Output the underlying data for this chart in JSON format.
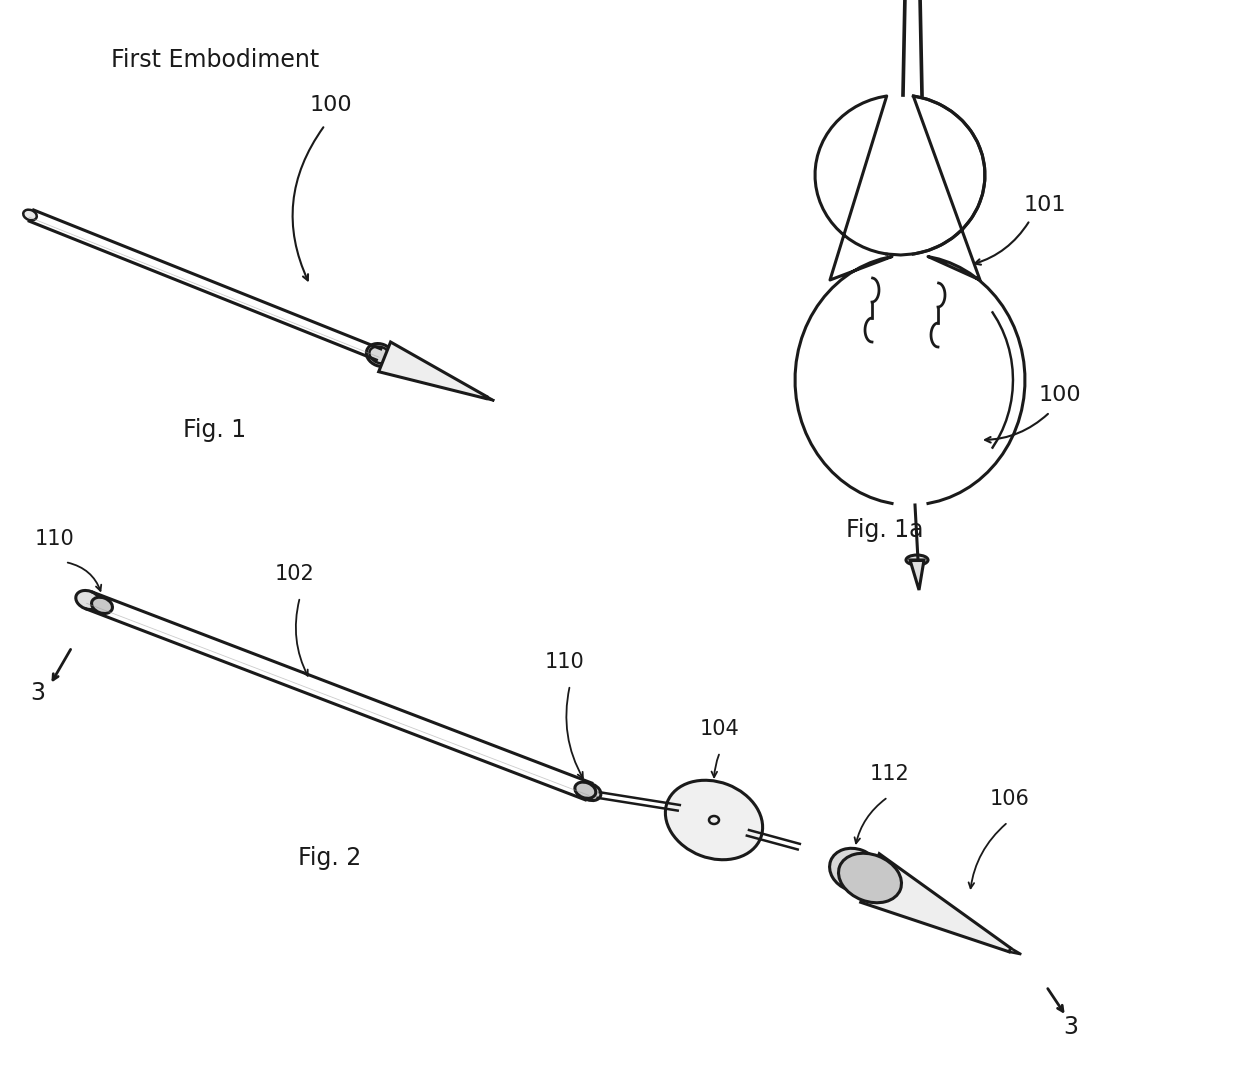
{
  "bg_color": "#ffffff",
  "line_color": "#1a1a1a",
  "fig_width": 12.4,
  "fig_height": 10.77,
  "labels": {
    "first_embodiment": "First Embodiment",
    "fig1": "Fig. 1",
    "fig1a": "Fig. 1a",
    "fig2": "Fig. 2",
    "ref_100_top": "100",
    "ref_101": "101",
    "ref_100_right": "100",
    "ref_110_left": "110",
    "ref_102": "102",
    "ref_110_mid": "110",
    "ref_104": "104",
    "ref_112": "112",
    "ref_106": "106",
    "ref_3_left": "3",
    "ref_3_right": "3"
  }
}
